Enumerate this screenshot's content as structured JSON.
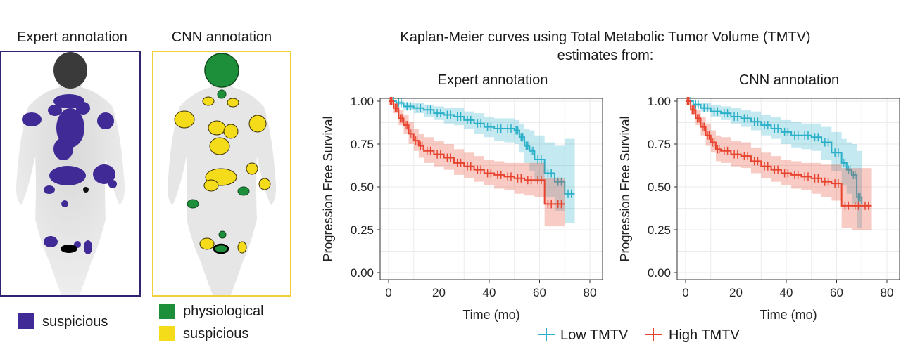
{
  "scans": {
    "expert": {
      "title": "Expert annotation",
      "frame_color": "#2e2470",
      "legend": [
        {
          "label": "suspicious",
          "color": "#3f2a96"
        }
      ]
    },
    "cnn": {
      "title": "CNN annotation",
      "frame_color": "#f0cf3a",
      "legend": [
        {
          "label": "physiological",
          "color": "#1d8f3a"
        },
        {
          "label": "suspicious",
          "color": "#f5dc1a"
        }
      ]
    }
  },
  "figure": {
    "title_line1": "Kaplan-Meier curves using Total Metabolic Tumor Volume (TMTV)",
    "title_line2": "estimates from:"
  },
  "legend": {
    "low_label": "Low TMTV",
    "high_label": "High TMTV",
    "low_color": "#2ab0c8",
    "high_color": "#e8432e"
  },
  "chart_data": [
    {
      "type": "line",
      "title": "Expert annotation",
      "xlabel": "Time (mo)",
      "ylabel": "Progression Free Survival",
      "xlim": [
        0,
        80
      ],
      "ylim": [
        0,
        1
      ],
      "xticks": [
        "0",
        "20",
        "40",
        "60",
        "80"
      ],
      "yticks": [
        "0.00",
        "0.25",
        "0.50",
        "0.75",
        "1.00"
      ],
      "grid": true,
      "series": [
        {
          "name": "Low TMTV",
          "color": "#2ab0c8",
          "x": [
            0,
            3,
            6,
            10,
            14,
            18,
            22,
            26,
            30,
            34,
            38,
            42,
            46,
            50,
            52,
            54,
            56,
            58,
            62,
            66,
            70,
            74
          ],
          "y": [
            1.0,
            0.99,
            0.97,
            0.96,
            0.95,
            0.93,
            0.92,
            0.91,
            0.89,
            0.87,
            0.85,
            0.84,
            0.84,
            0.83,
            0.79,
            0.74,
            0.71,
            0.66,
            0.58,
            0.53,
            0.46,
            0.46
          ],
          "lower": [
            1.0,
            0.98,
            0.95,
            0.93,
            0.91,
            0.89,
            0.87,
            0.86,
            0.84,
            0.81,
            0.79,
            0.77,
            0.76,
            0.75,
            0.7,
            0.64,
            0.59,
            0.53,
            0.44,
            0.36,
            0.29,
            0.27
          ],
          "upper": [
            1.0,
            1.0,
            0.99,
            0.99,
            0.98,
            0.97,
            0.96,
            0.96,
            0.94,
            0.93,
            0.91,
            0.9,
            0.9,
            0.89,
            0.87,
            0.84,
            0.83,
            0.8,
            0.76,
            0.74,
            0.78,
            0.8
          ]
        },
        {
          "name": "High TMTV",
          "color": "#e8432e",
          "x": [
            0,
            2,
            4,
            6,
            8,
            10,
            12,
            14,
            18,
            22,
            26,
            30,
            34,
            38,
            42,
            46,
            50,
            54,
            58,
            62,
            66,
            70
          ],
          "y": [
            1.0,
            0.96,
            0.9,
            0.86,
            0.81,
            0.77,
            0.74,
            0.71,
            0.69,
            0.67,
            0.64,
            0.62,
            0.6,
            0.58,
            0.57,
            0.56,
            0.55,
            0.54,
            0.54,
            0.4,
            0.4,
            0.4
          ],
          "lower": [
            1.0,
            0.93,
            0.86,
            0.81,
            0.75,
            0.71,
            0.67,
            0.64,
            0.62,
            0.6,
            0.57,
            0.55,
            0.53,
            0.51,
            0.49,
            0.48,
            0.46,
            0.45,
            0.44,
            0.27,
            0.27,
            0.27
          ],
          "upper": [
            1.0,
            0.99,
            0.95,
            0.92,
            0.88,
            0.84,
            0.81,
            0.79,
            0.77,
            0.75,
            0.72,
            0.7,
            0.68,
            0.66,
            0.65,
            0.64,
            0.64,
            0.64,
            0.64,
            0.55,
            0.55,
            0.55
          ]
        }
      ]
    },
    {
      "type": "line",
      "title": "CNN annotation",
      "xlabel": "Time (mo)",
      "ylabel": "Progression Free Survival",
      "xlim": [
        0,
        80
      ],
      "ylim": [
        0,
        1
      ],
      "xticks": [
        "0",
        "20",
        "40",
        "60",
        "80"
      ],
      "yticks": [
        "0.00",
        "0.25",
        "0.50",
        "0.75",
        "1.00"
      ],
      "grid": true,
      "series": [
        {
          "name": "Low TMTV",
          "color": "#2ab0c8",
          "x": [
            0,
            3,
            6,
            10,
            14,
            18,
            22,
            26,
            30,
            34,
            38,
            42,
            46,
            50,
            54,
            58,
            62,
            64,
            66,
            68,
            70
          ],
          "y": [
            1.0,
            0.98,
            0.96,
            0.94,
            0.93,
            0.91,
            0.9,
            0.88,
            0.86,
            0.84,
            0.82,
            0.8,
            0.8,
            0.79,
            0.76,
            0.7,
            0.64,
            0.6,
            0.57,
            0.44,
            0.4
          ],
          "lower": [
            1.0,
            0.97,
            0.94,
            0.91,
            0.89,
            0.87,
            0.85,
            0.83,
            0.8,
            0.78,
            0.75,
            0.73,
            0.72,
            0.71,
            0.66,
            0.59,
            0.51,
            0.46,
            0.4,
            0.26,
            0.22
          ],
          "upper": [
            1.0,
            0.99,
            0.99,
            0.98,
            0.97,
            0.96,
            0.95,
            0.94,
            0.92,
            0.91,
            0.89,
            0.88,
            0.87,
            0.87,
            0.85,
            0.82,
            0.78,
            0.76,
            0.75,
            0.71,
            0.7
          ]
        },
        {
          "name": "High TMTV",
          "color": "#e8432e",
          "x": [
            0,
            2,
            4,
            6,
            8,
            10,
            12,
            14,
            18,
            22,
            26,
            30,
            34,
            38,
            42,
            46,
            50,
            54,
            58,
            62,
            66,
            70,
            74
          ],
          "y": [
            1.0,
            0.95,
            0.9,
            0.85,
            0.8,
            0.76,
            0.72,
            0.71,
            0.69,
            0.68,
            0.65,
            0.62,
            0.6,
            0.58,
            0.57,
            0.56,
            0.55,
            0.53,
            0.52,
            0.39,
            0.39,
            0.39,
            0.39
          ],
          "lower": [
            1.0,
            0.92,
            0.86,
            0.8,
            0.74,
            0.7,
            0.65,
            0.64,
            0.62,
            0.61,
            0.58,
            0.55,
            0.53,
            0.51,
            0.49,
            0.48,
            0.46,
            0.44,
            0.42,
            0.26,
            0.25,
            0.25,
            0.25
          ],
          "upper": [
            1.0,
            0.98,
            0.95,
            0.91,
            0.87,
            0.83,
            0.8,
            0.79,
            0.77,
            0.76,
            0.73,
            0.7,
            0.68,
            0.66,
            0.65,
            0.64,
            0.64,
            0.63,
            0.63,
            0.61,
            0.61,
            0.61,
            0.61
          ]
        }
      ]
    }
  ]
}
